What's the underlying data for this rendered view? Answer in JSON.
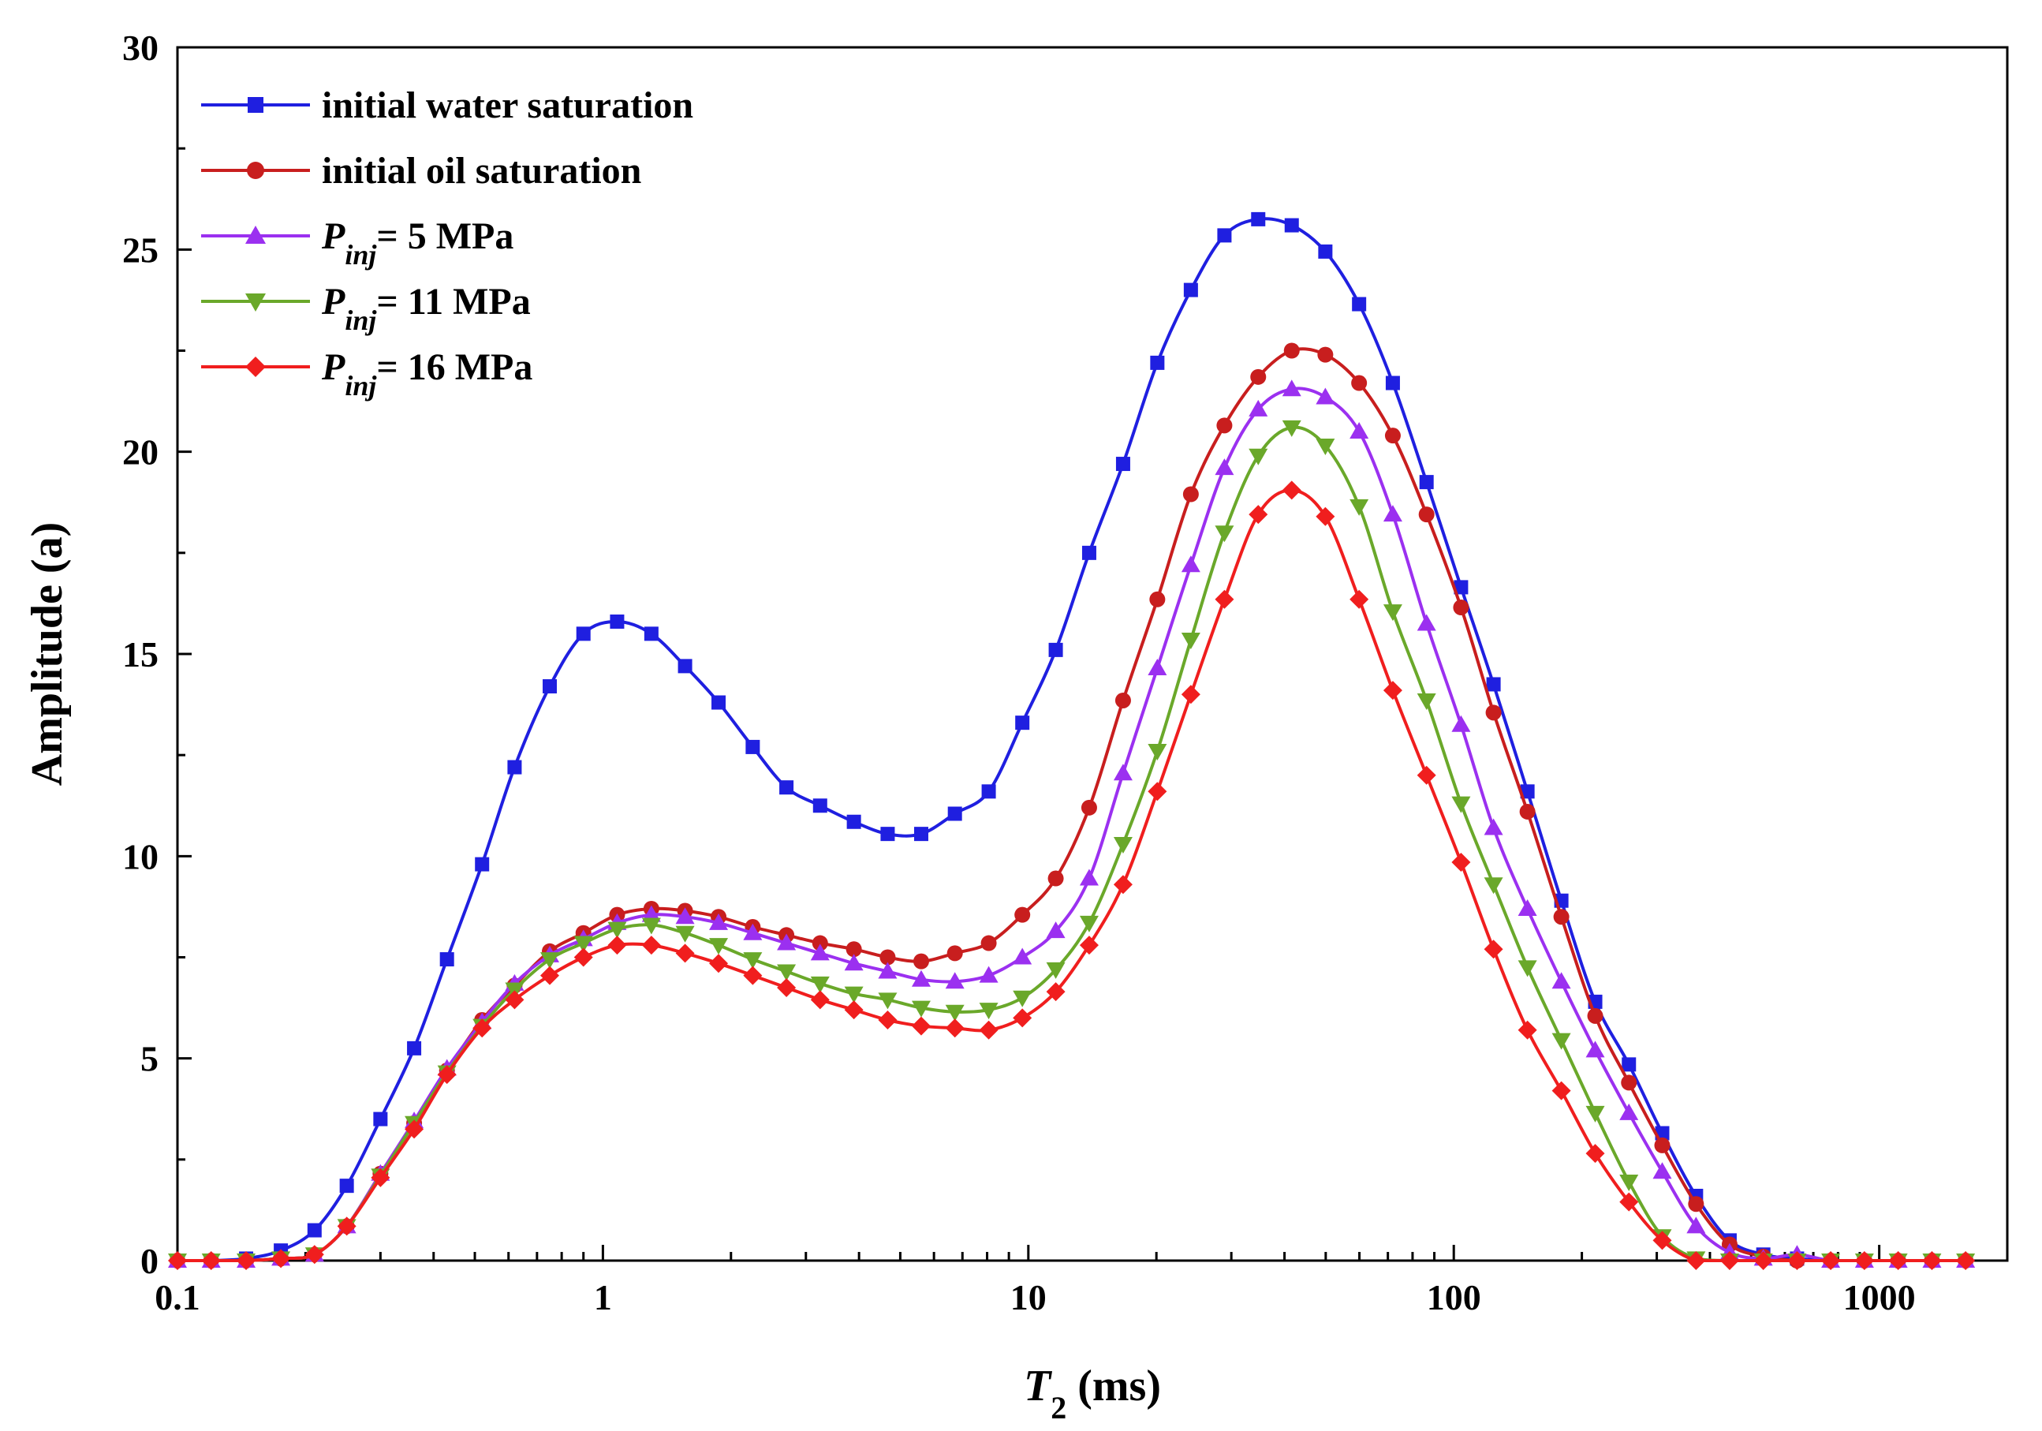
{
  "chart_data": {
    "type": "line",
    "title": "",
    "xlabel": "T2 (ms)",
    "xlabel_parts": {
      "symbol": "T",
      "subscript": "2",
      "unit": " (ms)"
    },
    "ylabel": "Amplitude (a)",
    "xscale": "log",
    "xlim": [
      0.1,
      2000
    ],
    "ylim": [
      0,
      30
    ],
    "x_ticks": [
      0.1,
      1,
      10,
      100,
      1000
    ],
    "x_tick_labels": [
      "0.1",
      "1",
      "10",
      "100",
      "1000"
    ],
    "y_ticks": [
      0,
      5,
      10,
      15,
      20,
      25,
      30
    ],
    "y_tick_labels": [
      "0",
      "5",
      "10",
      "15",
      "20",
      "25",
      "30"
    ],
    "grid": false,
    "legend_position": "top-left",
    "x": [
      0.1,
      0.12,
      0.145,
      0.175,
      0.21,
      0.25,
      0.3,
      0.36,
      0.43,
      0.52,
      0.62,
      0.75,
      0.9,
      1.08,
      1.3,
      1.56,
      1.87,
      2.25,
      2.7,
      3.24,
      3.89,
      4.67,
      5.6,
      6.72,
      8.07,
      9.68,
      11.6,
      13.9,
      16.7,
      20.1,
      24.1,
      28.9,
      34.7,
      41.6,
      49.9,
      59.9,
      71.9,
      86.3,
      104,
      124,
      149,
      179,
      215,
      258,
      309,
      371,
      445,
      534,
      641,
      769,
      923,
      1108,
      1330,
      1596
    ],
    "series": [
      {
        "name": "initial water saturation",
        "label_parts": {
          "main": "initial water saturation"
        },
        "color": "#1f1fe0",
        "marker": "square",
        "values": [
          0,
          0,
          0.05,
          0.25,
          0.75,
          1.85,
          3.5,
          5.25,
          7.45,
          9.8,
          12.2,
          14.2,
          15.5,
          15.8,
          15.5,
          14.7,
          13.8,
          12.7,
          11.7,
          11.25,
          10.85,
          10.55,
          10.55,
          11.05,
          11.6,
          13.3,
          15.1,
          17.5,
          19.7,
          22.2,
          24,
          25.35,
          25.75,
          25.6,
          24.95,
          23.65,
          21.7,
          19.25,
          16.65,
          14.25,
          11.6,
          8.9,
          6.4,
          4.85,
          3.15,
          1.6,
          0.5,
          0.15,
          0.05,
          0,
          0,
          0,
          0,
          0
        ]
      },
      {
        "name": "initial oil saturation",
        "label_parts": {
          "main": "initial oil saturation"
        },
        "color": "#c81e1e",
        "marker": "circle",
        "values": [
          0,
          0,
          0,
          0.05,
          0.15,
          0.85,
          2.15,
          3.4,
          4.7,
          5.95,
          6.8,
          7.65,
          8.1,
          8.55,
          8.7,
          8.65,
          8.5,
          8.25,
          8.05,
          7.85,
          7.7,
          7.5,
          7.4,
          7.6,
          7.85,
          8.55,
          9.45,
          11.2,
          13.85,
          16.35,
          18.95,
          20.65,
          21.85,
          22.5,
          22.4,
          21.7,
          20.4,
          18.45,
          16.15,
          13.55,
          11.1,
          8.5,
          6.05,
          4.4,
          2.85,
          1.4,
          0.4,
          0.1,
          0,
          0,
          0,
          0,
          0,
          0
        ]
      },
      {
        "name": "Pinj= 5 MPa",
        "label_parts": {
          "main": "P",
          "sub": "inj",
          "rest": "= 5 MPa"
        },
        "color": "#9b30f0",
        "marker": "triangle-up",
        "values": [
          0,
          0,
          0,
          0.05,
          0.15,
          0.85,
          2.15,
          3.45,
          4.75,
          5.9,
          6.85,
          7.55,
          7.95,
          8.35,
          8.55,
          8.5,
          8.35,
          8.1,
          7.85,
          7.6,
          7.35,
          7.15,
          6.95,
          6.9,
          7.05,
          7.5,
          8.15,
          9.45,
          12.05,
          14.65,
          17.2,
          19.6,
          21.05,
          21.55,
          21.35,
          20.5,
          18.45,
          15.75,
          13.25,
          10.7,
          8.7,
          6.9,
          5.2,
          3.65,
          2.2,
          0.85,
          0.2,
          0.05,
          0.15,
          0,
          0,
          0,
          0,
          0
        ]
      },
      {
        "name": "Pinj= 11 MPa",
        "label_parts": {
          "main": "P",
          "sub": "inj",
          "rest": "= 11 MPa"
        },
        "color": "#6aa82a",
        "marker": "triangle-down",
        "values": [
          0,
          0,
          0,
          0.05,
          0.15,
          0.85,
          2.1,
          3.4,
          4.65,
          5.8,
          6.7,
          7.45,
          7.85,
          8.2,
          8.3,
          8.1,
          7.8,
          7.45,
          7.15,
          6.85,
          6.6,
          6.45,
          6.25,
          6.15,
          6.2,
          6.5,
          7.2,
          8.35,
          10.3,
          12.6,
          15.35,
          18,
          19.9,
          20.6,
          20.15,
          18.65,
          16.05,
          13.85,
          11.3,
          9.3,
          7.25,
          5.45,
          3.65,
          1.95,
          0.6,
          0.05,
          0,
          0,
          0,
          0,
          0,
          0,
          0,
          0
        ]
      },
      {
        "name": "Pinj= 16 MPa",
        "label_parts": {
          "main": "P",
          "sub": "inj",
          "rest": "= 16 MPa"
        },
        "color": "#f01e1e",
        "marker": "diamond",
        "values": [
          0,
          0,
          0,
          0.05,
          0.15,
          0.85,
          2.05,
          3.25,
          4.6,
          5.75,
          6.45,
          7.05,
          7.5,
          7.8,
          7.8,
          7.6,
          7.35,
          7.05,
          6.75,
          6.45,
          6.2,
          5.95,
          5.8,
          5.75,
          5.7,
          6,
          6.65,
          7.8,
          9.3,
          11.6,
          14,
          16.35,
          18.45,
          19.05,
          18.4,
          16.35,
          14.1,
          12,
          9.85,
          7.7,
          5.7,
          4.2,
          2.65,
          1.45,
          0.5,
          0,
          0,
          0,
          0,
          0,
          0,
          0,
          0,
          0
        ]
      }
    ]
  }
}
